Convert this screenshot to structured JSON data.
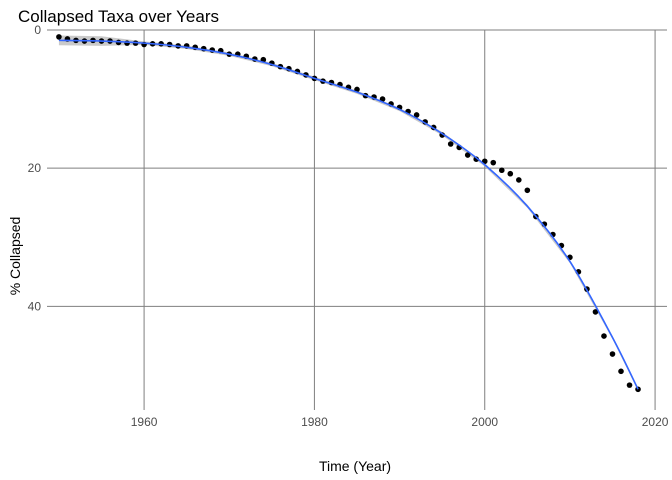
{
  "chart_data": {
    "type": "scatter",
    "title": "Collapsed Taxa over Years",
    "xlabel": "Time (Year)",
    "ylabel": "% Collapsed",
    "xlim": [
      1948.6,
      2021.4
    ],
    "ylim": [
      0,
      55
    ],
    "y_reversed": true,
    "x_ticks": [
      1960,
      1980,
      2000,
      2020
    ],
    "y_ticks": [
      0,
      20,
      40
    ],
    "grid": true,
    "legend": "none",
    "point_color": "#000000",
    "smooth_color": "#3366ff",
    "band_color": "#bdbdbd",
    "x": [
      1950,
      1951,
      1952,
      1953,
      1954,
      1955,
      1956,
      1957,
      1958,
      1959,
      1960,
      1961,
      1962,
      1963,
      1964,
      1965,
      1966,
      1967,
      1968,
      1969,
      1970,
      1971,
      1972,
      1973,
      1974,
      1975,
      1976,
      1977,
      1978,
      1979,
      1980,
      1981,
      1982,
      1983,
      1984,
      1985,
      1986,
      1987,
      1988,
      1989,
      1990,
      1991,
      1992,
      1993,
      1994,
      1995,
      1996,
      1997,
      1998,
      1999,
      2000,
      2001,
      2002,
      2003,
      2004,
      2005,
      2006,
      2007,
      2008,
      2009,
      2010,
      2011,
      2012,
      2013,
      2014,
      2015,
      2016,
      2017,
      2018
    ],
    "y": [
      1.0,
      1.3,
      1.5,
      1.6,
      1.5,
      1.6,
      1.6,
      1.8,
      1.9,
      1.9,
      2.1,
      2.0,
      2.0,
      2.1,
      2.3,
      2.3,
      2.5,
      2.7,
      2.9,
      3.0,
      3.5,
      3.5,
      3.8,
      4.2,
      4.3,
      4.8,
      5.3,
      5.6,
      6.0,
      6.5,
      7.0,
      7.4,
      7.6,
      7.9,
      8.3,
      8.6,
      9.5,
      9.7,
      10.0,
      10.7,
      11.2,
      11.8,
      12.3,
      13.3,
      14.1,
      15.2,
      16.5,
      17.0,
      18.1,
      18.7,
      19.0,
      19.2,
      20.3,
      20.8,
      21.7,
      23.2,
      27.0,
      28.1,
      29.6,
      31.2,
      32.9,
      35.0,
      37.5,
      40.8,
      44.3,
      46.9,
      49.4,
      51.4,
      52.0
    ],
    "smooth_x": [
      1950,
      1955,
      1960,
      1965,
      1970,
      1975,
      1980,
      1985,
      1990,
      1995,
      2000,
      2005,
      2010,
      2015,
      2018
    ],
    "smooth_y": [
      1.5,
      1.6,
      1.9,
      2.5,
      3.5,
      5.0,
      7.0,
      9.0,
      11.5,
      15.0,
      19.5,
      25.5,
      33.5,
      44.5,
      52.0
    ]
  }
}
